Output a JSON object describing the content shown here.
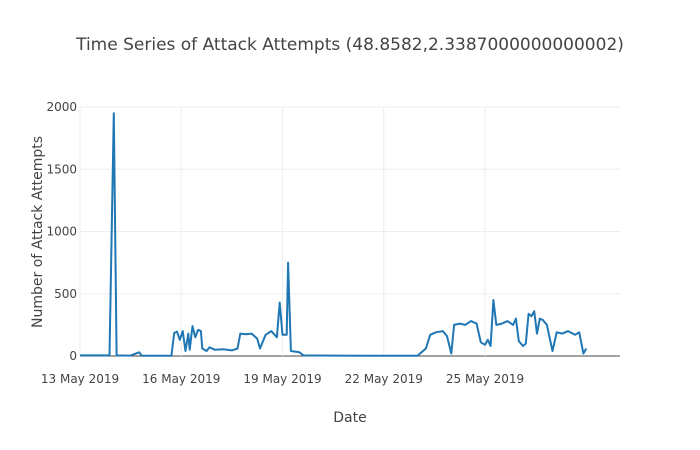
{
  "chart_data": {
    "type": "line",
    "title": "Time Series of Attack Attempts (48.8582,2.3387000000000002)",
    "xlabel": "Date",
    "ylabel": "Number of Attack Attempts",
    "x_range": [
      "2019-05-13",
      "2019-05-29"
    ],
    "ylim": [
      0,
      2000
    ],
    "x_ticks": [
      {
        "date": "2019-05-13",
        "label": "13 May 2019"
      },
      {
        "date": "2019-05-16",
        "label": "16 May 2019"
      },
      {
        "date": "2019-05-19",
        "label": "19 May 2019"
      },
      {
        "date": "2019-05-22",
        "label": "22 May 2019"
      },
      {
        "date": "2019-05-25",
        "label": "25 May 2019"
      }
    ],
    "y_ticks": [
      0,
      500,
      1000,
      1500,
      2000
    ],
    "y_tick_labels": [
      "0",
      "500",
      "1000",
      "1500",
      "2000"
    ],
    "grid": true,
    "line_color": "#1f77b4",
    "series": [
      {
        "points": [
          [
            "2019-05-13 00:00",
            5
          ],
          [
            "2019-05-13 12:00",
            5
          ],
          [
            "2019-05-13 21:00",
            5
          ],
          [
            "2019-05-14 00:00",
            1950
          ],
          [
            "2019-05-14 02:00",
            5
          ],
          [
            "2019-05-14 12:00",
            3
          ],
          [
            "2019-05-14 18:00",
            30
          ],
          [
            "2019-05-14 20:00",
            2
          ],
          [
            "2019-05-15 12:00",
            2
          ],
          [
            "2019-05-15 17:00",
            2
          ],
          [
            "2019-05-15 19:00",
            185
          ],
          [
            "2019-05-15 21:00",
            195
          ],
          [
            "2019-05-15 23:00",
            130
          ],
          [
            "2019-05-16 01:00",
            200
          ],
          [
            "2019-05-16 03:00",
            40
          ],
          [
            "2019-05-16 05:00",
            180
          ],
          [
            "2019-05-16 06:00",
            50
          ],
          [
            "2019-05-16 08:00",
            240
          ],
          [
            "2019-05-16 10:00",
            150
          ],
          [
            "2019-05-16 12:00",
            210
          ],
          [
            "2019-05-16 14:00",
            200
          ],
          [
            "2019-05-16 15:00",
            60
          ],
          [
            "2019-05-16 18:00",
            40
          ],
          [
            "2019-05-16 20:00",
            70
          ],
          [
            "2019-05-17 00:00",
            50
          ],
          [
            "2019-05-17 06:00",
            55
          ],
          [
            "2019-05-17 12:00",
            45
          ],
          [
            "2019-05-17 16:00",
            60
          ],
          [
            "2019-05-17 18:00",
            180
          ],
          [
            "2019-05-17 22:00",
            175
          ],
          [
            "2019-05-18 02:00",
            180
          ],
          [
            "2019-05-18 06:00",
            140
          ],
          [
            "2019-05-18 08:00",
            60
          ],
          [
            "2019-05-18 12:00",
            170
          ],
          [
            "2019-05-18 16:00",
            200
          ],
          [
            "2019-05-18 20:00",
            150
          ],
          [
            "2019-05-18 22:00",
            430
          ],
          [
            "2019-05-19 00:00",
            170
          ],
          [
            "2019-05-19 03:00",
            170
          ],
          [
            "2019-05-19 04:00",
            750
          ],
          [
            "2019-05-19 06:00",
            40
          ],
          [
            "2019-05-19 12:00",
            30
          ],
          [
            "2019-05-19 15:00",
            5
          ],
          [
            "2019-05-20 12:00",
            3
          ],
          [
            "2019-05-21 12:00",
            2
          ],
          [
            "2019-05-22 12:00",
            2
          ],
          [
            "2019-05-23 00:00",
            2
          ],
          [
            "2019-05-23 06:00",
            60
          ],
          [
            "2019-05-23 09:00",
            170
          ],
          [
            "2019-05-23 13:00",
            190
          ],
          [
            "2019-05-23 18:00",
            200
          ],
          [
            "2019-05-23 21:00",
            160
          ],
          [
            "2019-05-24 00:00",
            20
          ],
          [
            "2019-05-24 02:00",
            250
          ],
          [
            "2019-05-24 06:00",
            260
          ],
          [
            "2019-05-24 10:00",
            250
          ],
          [
            "2019-05-24 14:00",
            280
          ],
          [
            "2019-05-24 18:00",
            260
          ],
          [
            "2019-05-24 21:00",
            110
          ],
          [
            "2019-05-25 00:00",
            90
          ],
          [
            "2019-05-25 02:00",
            130
          ],
          [
            "2019-05-25 04:00",
            80
          ],
          [
            "2019-05-25 06:00",
            450
          ],
          [
            "2019-05-25 08:00",
            250
          ],
          [
            "2019-05-25 12:00",
            260
          ],
          [
            "2019-05-25 16:00",
            280
          ],
          [
            "2019-05-25 20:00",
            250
          ],
          [
            "2019-05-25 22:00",
            300
          ],
          [
            "2019-05-26 00:00",
            120
          ],
          [
            "2019-05-26 03:00",
            80
          ],
          [
            "2019-05-26 05:00",
            100
          ],
          [
            "2019-05-26 07:00",
            340
          ],
          [
            "2019-05-26 09:00",
            320
          ],
          [
            "2019-05-26 11:00",
            360
          ],
          [
            "2019-05-26 13:00",
            180
          ],
          [
            "2019-05-26 15:00",
            300
          ],
          [
            "2019-05-26 17:00",
            290
          ],
          [
            "2019-05-26 20:00",
            250
          ],
          [
            "2019-05-27 00:00",
            40
          ],
          [
            "2019-05-27 03:00",
            190
          ],
          [
            "2019-05-27 07:00",
            180
          ],
          [
            "2019-05-27 11:00",
            200
          ],
          [
            "2019-05-27 16:00",
            170
          ],
          [
            "2019-05-27 19:00",
            190
          ],
          [
            "2019-05-27 22:00",
            20
          ],
          [
            "2019-05-28 00:00",
            60
          ]
        ]
      }
    ]
  }
}
